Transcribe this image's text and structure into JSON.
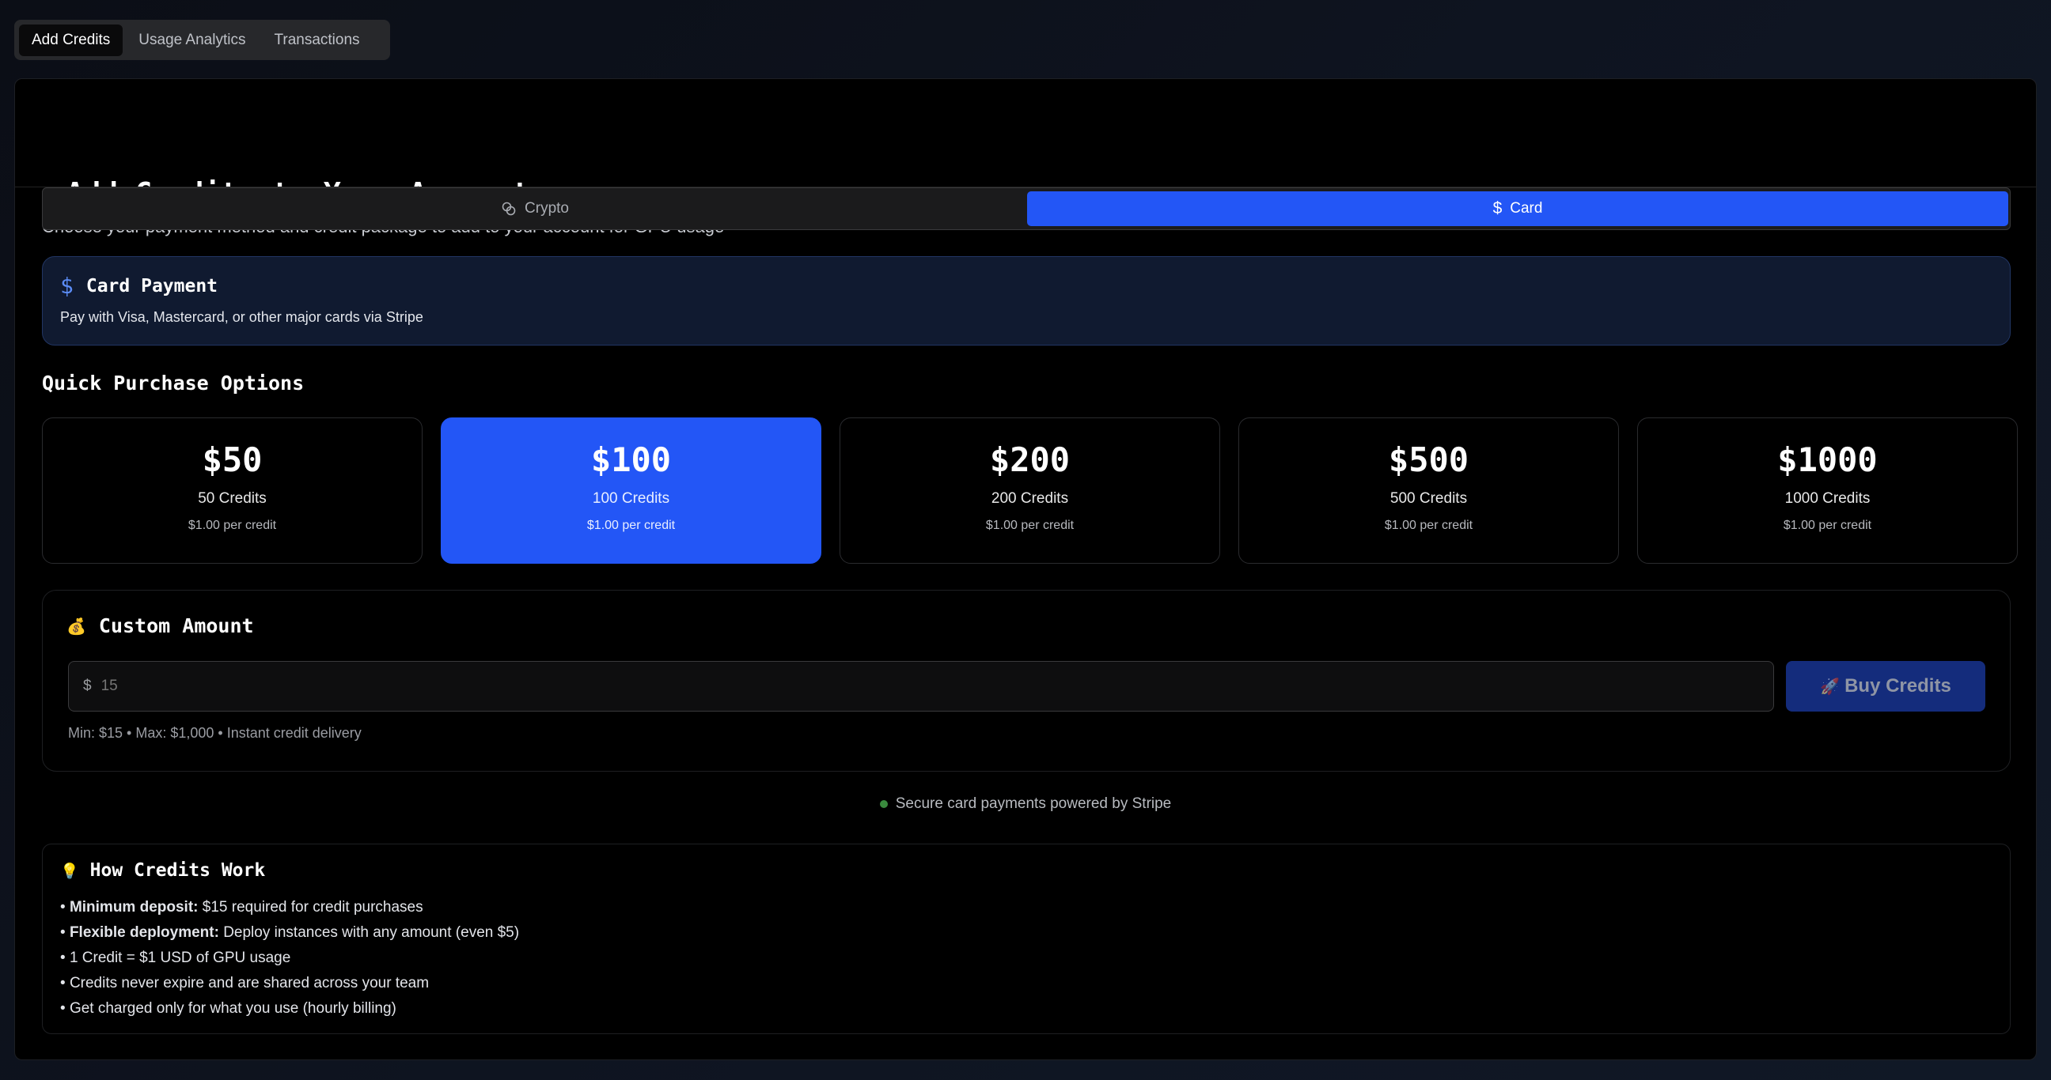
{
  "tabs": [
    {
      "label": "Add Credits",
      "active": true
    },
    {
      "label": "Usage Analytics",
      "active": false
    },
    {
      "label": "Transactions",
      "active": false
    }
  ],
  "header": {
    "icon": "⚡",
    "title": "Add Credits to Your Account",
    "subtitle": "Choose your payment method and credit package to add to your account for GPU usage"
  },
  "payment_toggle": {
    "crypto_label": "Crypto",
    "card_label": "Card",
    "selected": "Card"
  },
  "card_payment": {
    "icon": "$",
    "title": "Card Payment",
    "description": "Pay with Visa, Mastercard, or other major cards via Stripe"
  },
  "quick": {
    "title": "Quick Purchase Options",
    "packages": [
      {
        "amount": "$50",
        "credits": "50 Credits",
        "rate": "$1.00 per credit",
        "selected": false
      },
      {
        "amount": "$100",
        "credits": "100 Credits",
        "rate": "$1.00 per credit",
        "selected": true
      },
      {
        "amount": "$200",
        "credits": "200 Credits",
        "rate": "$1.00 per credit",
        "selected": false
      },
      {
        "amount": "$500",
        "credits": "500 Credits",
        "rate": "$1.00 per credit",
        "selected": false
      },
      {
        "amount": "$1000",
        "credits": "1000 Credits",
        "rate": "$1.00 per credit",
        "selected": false
      }
    ]
  },
  "custom": {
    "icon": "💰",
    "title": "Custom Amount",
    "currency": "$",
    "placeholder": "15",
    "button_icon": "🚀",
    "button_label": "Buy Credits",
    "note": "Min: $15 • Max: $1,000 • Instant credit delivery"
  },
  "secure": {
    "text": "Secure card payments powered by Stripe",
    "status_color": "#3a8a3e"
  },
  "how": {
    "icon": "💡",
    "title": "How Credits Work",
    "items": [
      {
        "bold": "Minimum deposit:",
        "text": " $15 required for credit purchases"
      },
      {
        "bold": "Flexible deployment:",
        "text": " Deploy instances with any amount (even $5)"
      },
      {
        "bold": "",
        "text": "1 Credit = $1 USD of GPU usage"
      },
      {
        "bold": "",
        "text": "Credits never expire and are shared across your team"
      },
      {
        "bold": "",
        "text": "Get charged only for what you use (hourly billing)"
      }
    ]
  },
  "colors": {
    "accent": "#2356f6",
    "button_disabled": "#142c7c"
  }
}
